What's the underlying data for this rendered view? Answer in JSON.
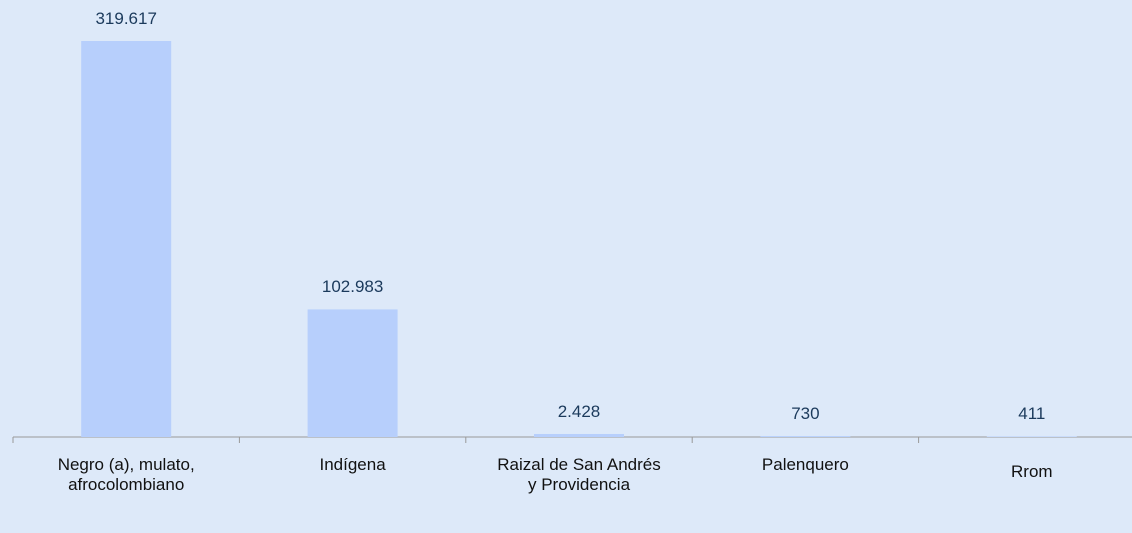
{
  "chart_data": {
    "type": "bar",
    "categories": [
      "Negro (a), mulato, afrocolombiano",
      "Indígena",
      "Raizal de San Andrés y Providencia",
      "Palenquero",
      "Rrom"
    ],
    "values": [
      319617,
      102983,
      2428,
      730,
      411
    ],
    "value_labels": [
      "319.617",
      "102.983",
      "2.428",
      "730",
      "411"
    ],
    "color": "#b7cffc"
  }
}
